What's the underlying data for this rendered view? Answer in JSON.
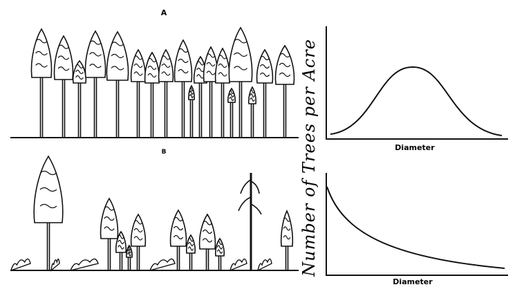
{
  "panels": [
    {
      "label": "A",
      "x_axis_label": "Diameter"
    },
    {
      "label": "B",
      "x_axis_label": "Diameter"
    }
  ],
  "y_axis_label": "Number of Trees per Acre"
}
